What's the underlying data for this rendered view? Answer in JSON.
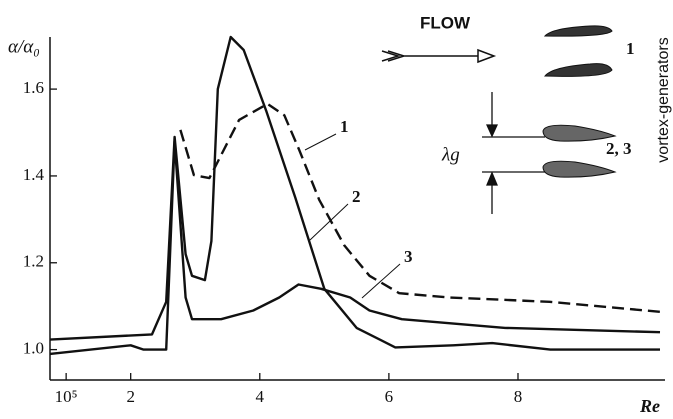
{
  "chart_data": {
    "type": "line",
    "y_label": "α/α₀",
    "x_label": "Re",
    "flow_label": "FLOW",
    "vg_labels": [
      "1",
      "2, 3"
    ],
    "spacing_label": "λg",
    "side_label": "vortex-generators",
    "xlim": [
      0.75,
      10.2
    ],
    "ylim": [
      0.93,
      1.72
    ],
    "xticks": [
      {
        "value": 1,
        "label": "10⁵"
      },
      2,
      4,
      6,
      8
    ],
    "yticks": [
      {
        "value": 1,
        "label": "1.0"
      },
      1.2,
      1.4,
      1.6
    ],
    "series": [
      {
        "name": "1",
        "color": "#111",
        "dashed": true,
        "x": [
          2.77,
          2.98,
          3.22,
          3.68,
          4.12,
          4.38,
          4.61,
          4.92,
          5.31,
          5.7,
          6.16,
          6.94,
          8.49,
          10.2
        ],
        "values": [
          1.506,
          1.402,
          1.395,
          1.529,
          1.566,
          1.54,
          1.46,
          1.345,
          1.24,
          1.17,
          1.13,
          1.12,
          1.11,
          1.087
        ]
      },
      {
        "name": "2",
        "color": "#111",
        "dashed": false,
        "x": [
          0.75,
          2.33,
          2.55,
          2.68,
          2.85,
          2.95,
          3.15,
          3.25,
          3.35,
          3.55,
          3.75,
          4.1,
          4.55,
          5.0,
          5.5,
          6.1,
          7.0,
          7.6,
          8.5,
          10.2
        ],
        "values": [
          1.023,
          1.035,
          1.11,
          1.49,
          1.22,
          1.17,
          1.16,
          1.25,
          1.6,
          1.72,
          1.69,
          1.55,
          1.35,
          1.14,
          1.05,
          1.005,
          1.01,
          1.015,
          1.0,
          1.0
        ]
      },
      {
        "name": "3",
        "color": "#111",
        "dashed": false,
        "x": [
          0.75,
          2.0,
          2.2,
          2.55,
          2.68,
          2.85,
          2.95,
          3.4,
          3.9,
          4.3,
          4.6,
          4.95,
          5.4,
          5.7,
          6.2,
          7.8,
          10.2
        ],
        "values": [
          0.99,
          1.01,
          1.0,
          1.0,
          1.48,
          1.12,
          1.07,
          1.07,
          1.09,
          1.12,
          1.15,
          1.14,
          1.12,
          1.09,
          1.07,
          1.05,
          1.04
        ]
      }
    ]
  }
}
